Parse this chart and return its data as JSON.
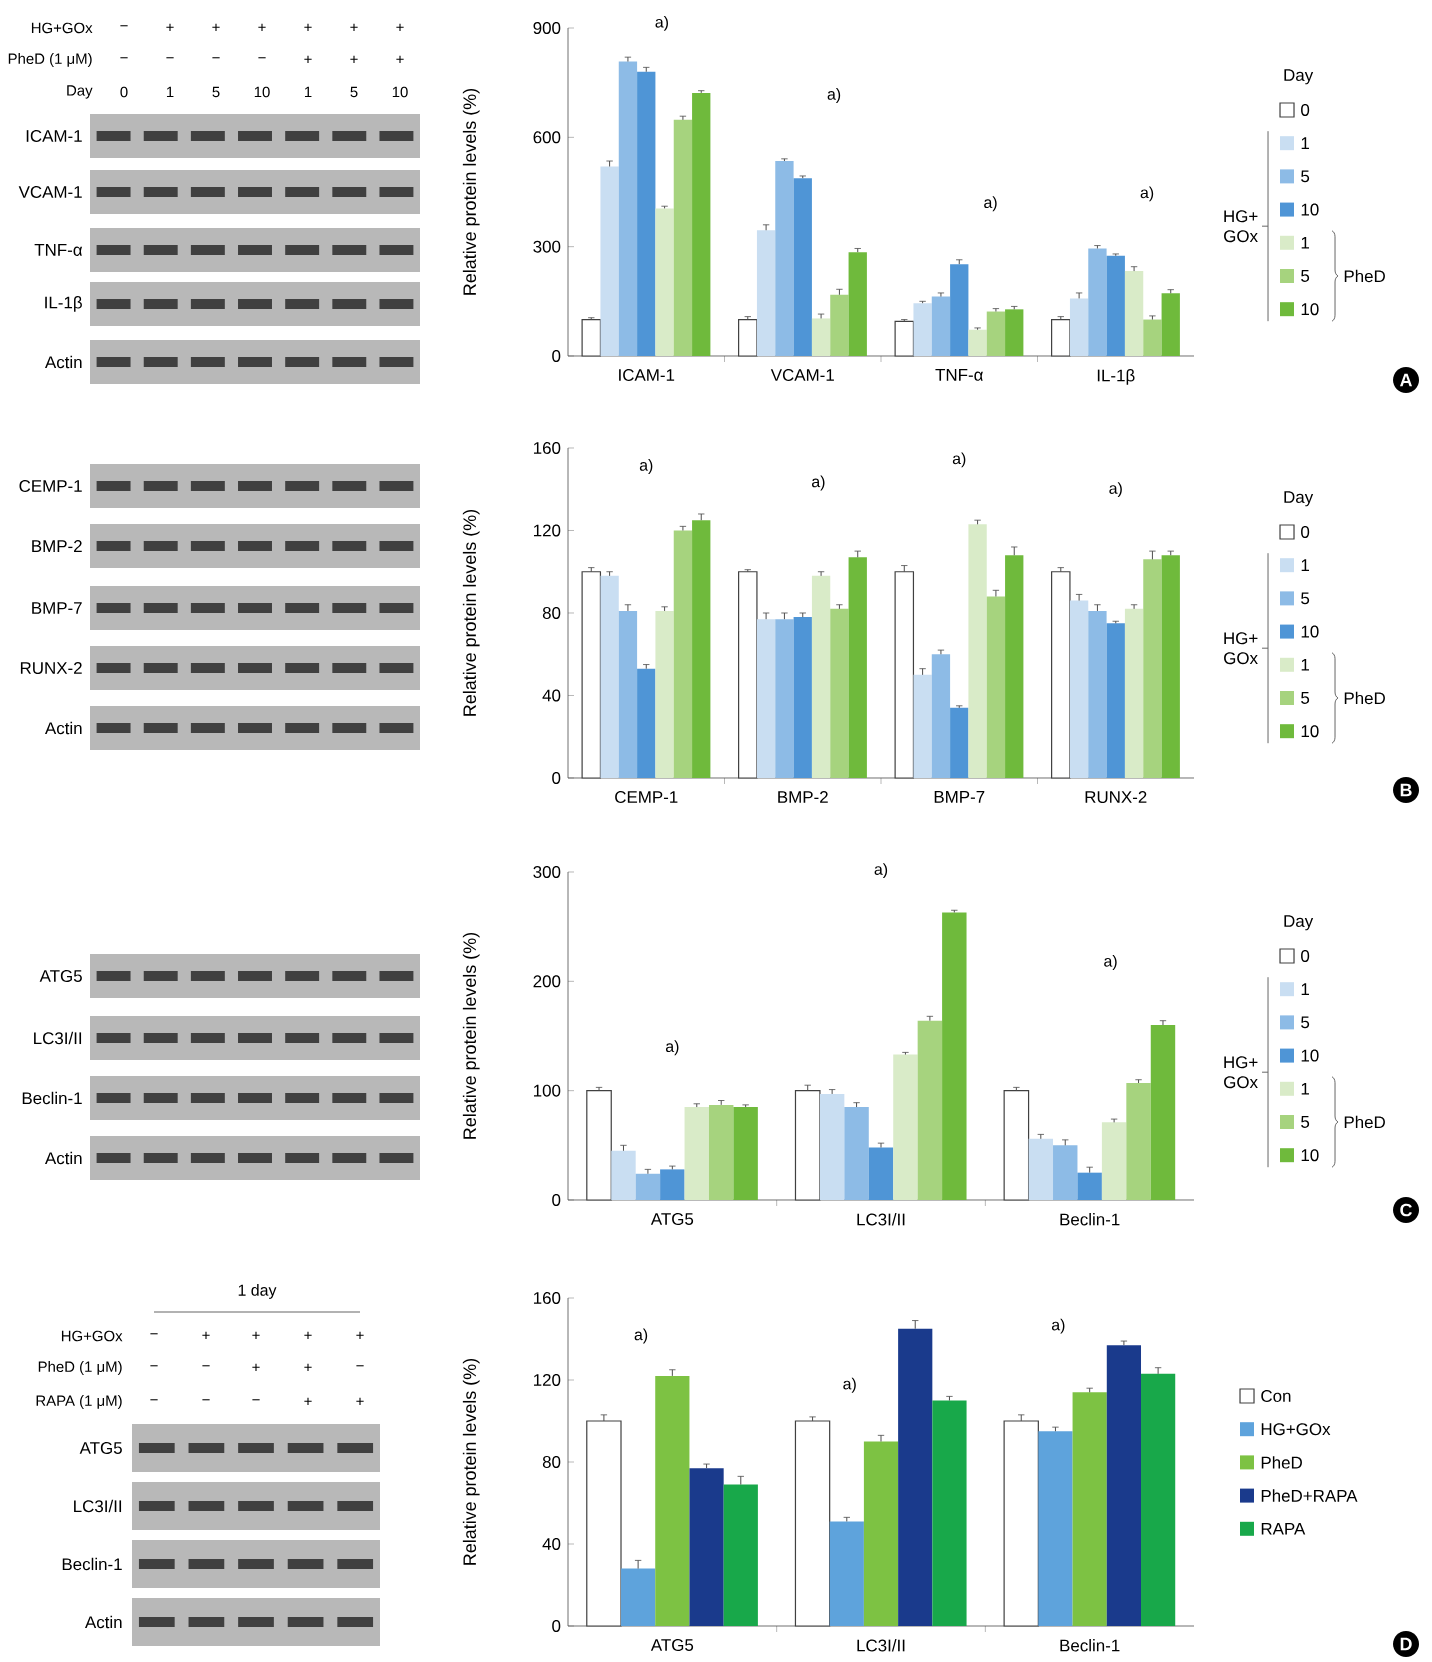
{
  "chart_data": [
    {
      "type": "bar",
      "ylabel": "Relative protein levels (%)",
      "categories": [
        "ICAM-1",
        "VCAM-1",
        "TNF-α",
        "IL-1β"
      ],
      "ylim": [
        0,
        900
      ],
      "yticks": [
        0,
        300,
        600,
        900
      ],
      "legend": "right",
      "legend_title": "Day",
      "series": [
        {
          "name": "0",
          "color": "#ffffff",
          "values": [
            100,
            100,
            95,
            100
          ],
          "errors": [
            5,
            8,
            5,
            8
          ]
        },
        {
          "name": "1",
          "color": "#c9def2",
          "values": [
            520,
            345,
            145,
            158
          ],
          "errors": [
            15,
            15,
            5,
            15
          ]
        },
        {
          "name": "5",
          "color": "#8dbbe6",
          "values": [
            808,
            535,
            163,
            295
          ],
          "errors": [
            12,
            6,
            10,
            8
          ]
        },
        {
          "name": "10",
          "color": "#4f95d6",
          "values": [
            780,
            488,
            252,
            275
          ],
          "errors": [
            12,
            6,
            12,
            5
          ]
        },
        {
          "name": "1",
          "color": "#d9ebc8",
          "values": [
            405,
            103,
            72,
            233
          ],
          "errors": [
            6,
            12,
            5,
            12
          ]
        },
        {
          "name": "5",
          "color": "#a6d37e",
          "values": [
            648,
            168,
            122,
            100
          ],
          "errors": [
            10,
            15,
            8,
            10
          ]
        },
        {
          "name": "10",
          "color": "#6fba3c",
          "values": [
            722,
            285,
            128,
            172
          ],
          "errors": [
            6,
            10,
            8,
            10
          ]
        }
      ],
      "annotations": [
        "a)",
        "a)",
        "a)",
        "a)",
        "HG+GOx",
        "PheD (1 μM)",
        "Day",
        "−",
        "+",
        "+",
        "+",
        "+",
        "+",
        "+",
        "−",
        "−",
        "−",
        "−",
        "+",
        "+",
        "+",
        "0",
        "1",
        "5",
        "10",
        "1",
        "5",
        "10",
        "ICAM-1",
        "VCAM-1",
        "TNF-α",
        "IL-1β",
        "Actin",
        "HG+ GOx",
        "PheD",
        "A"
      ]
    },
    {
      "type": "bar",
      "ylabel": "Relative protein levels (%)",
      "categories": [
        "CEMP-1",
        "BMP-2",
        "BMP-7",
        "RUNX-2"
      ],
      "ylim": [
        0,
        160
      ],
      "yticks": [
        0,
        40,
        80,
        120,
        160
      ],
      "legend": "right",
      "legend_title": "Day",
      "series": [
        {
          "name": "0",
          "color": "#ffffff",
          "values": [
            100,
            100,
            100,
            100
          ],
          "errors": [
            2,
            1,
            3,
            2
          ]
        },
        {
          "name": "1",
          "color": "#c9def2",
          "values": [
            98,
            77,
            50,
            86
          ],
          "errors": [
            2,
            3,
            3,
            3
          ]
        },
        {
          "name": "5",
          "color": "#8dbbe6",
          "values": [
            81,
            77,
            60,
            81
          ],
          "errors": [
            3,
            3,
            2,
            3
          ]
        },
        {
          "name": "10",
          "color": "#4f95d6",
          "values": [
            53,
            78,
            34,
            75
          ],
          "errors": [
            2,
            2,
            1,
            1
          ]
        },
        {
          "name": "1",
          "color": "#d9ebc8",
          "values": [
            81,
            98,
            123,
            82
          ],
          "errors": [
            2,
            2,
            2,
            2
          ]
        },
        {
          "name": "5",
          "color": "#a6d37e",
          "values": [
            120,
            82,
            88,
            106
          ],
          "errors": [
            2,
            2,
            3,
            4
          ]
        },
        {
          "name": "10",
          "color": "#6fba3c",
          "values": [
            125,
            107,
            108,
            108
          ],
          "errors": [
            3,
            3,
            4,
            2
          ]
        }
      ],
      "annotations": [
        "a)",
        "a)",
        "a)",
        "a)",
        "CEMP-1",
        "BMP-2",
        "BMP-7",
        "RUNX-2",
        "Actin",
        "HG+ GOx",
        "PheD",
        "B"
      ]
    },
    {
      "type": "bar",
      "ylabel": "Relative protein levels (%)",
      "categories": [
        "ATG5",
        "LC3I/II",
        "Beclin-1"
      ],
      "ylim": [
        0,
        300
      ],
      "yticks": [
        0,
        100,
        200,
        300
      ],
      "legend": "right",
      "legend_title": "Day",
      "series": [
        {
          "name": "0",
          "color": "#ffffff",
          "values": [
            100,
            100,
            100
          ],
          "errors": [
            3,
            5,
            3
          ]
        },
        {
          "name": "1",
          "color": "#c9def2",
          "values": [
            45,
            97,
            56
          ],
          "errors": [
            5,
            4,
            4
          ]
        },
        {
          "name": "5",
          "color": "#8dbbe6",
          "values": [
            24,
            85,
            50
          ],
          "errors": [
            4,
            4,
            5
          ]
        },
        {
          "name": "10",
          "color": "#4f95d6",
          "values": [
            28,
            48,
            25
          ],
          "errors": [
            3,
            4,
            5
          ]
        },
        {
          "name": "1",
          "color": "#d9ebc8",
          "values": [
            85,
            133,
            71
          ],
          "errors": [
            3,
            2,
            3
          ]
        },
        {
          "name": "5",
          "color": "#a6d37e",
          "values": [
            87,
            164,
            107
          ],
          "errors": [
            4,
            4,
            3
          ]
        },
        {
          "name": "10",
          "color": "#6fba3c",
          "values": [
            85,
            263,
            160
          ],
          "errors": [
            2,
            2,
            4
          ]
        }
      ],
      "annotations": [
        "a)",
        "a)",
        "a)",
        "ATG5",
        "LC3I/II",
        "Beclin-1",
        "Actin",
        "HG+ GOx",
        "PheD",
        "C"
      ]
    },
    {
      "type": "bar",
      "ylabel": "Relative protein levels (%)",
      "categories": [
        "ATG5",
        "LC3I/II",
        "Beclin-1"
      ],
      "ylim": [
        0,
        160
      ],
      "yticks": [
        0,
        40,
        80,
        120,
        160
      ],
      "legend": "right",
      "series": [
        {
          "name": "Con",
          "color": "#ffffff",
          "values": [
            100,
            100,
            100
          ],
          "errors": [
            3,
            2,
            3
          ]
        },
        {
          "name": "HG+GOx",
          "color": "#5ea3dc",
          "values": [
            28,
            51,
            95
          ],
          "errors": [
            4,
            2,
            2
          ]
        },
        {
          "name": "PheD",
          "color": "#7dc243",
          "values": [
            122,
            90,
            114
          ],
          "errors": [
            3,
            3,
            2
          ]
        },
        {
          "name": "PheD+RAPA",
          "color": "#1a3a8c",
          "values": [
            77,
            145,
            137
          ],
          "errors": [
            2,
            4,
            2
          ]
        },
        {
          "name": "RAPA",
          "color": "#18a84a",
          "values": [
            69,
            110,
            123
          ],
          "errors": [
            4,
            2,
            3
          ]
        }
      ],
      "annotations": [
        "a)",
        "a)",
        "a)",
        "1 day",
        "HG+GOx",
        "PheD (1 μM)",
        "RAPA (1 μM)",
        "−",
        "+",
        "+",
        "+",
        "+",
        "−",
        "−",
        "+",
        "+",
        "−",
        "−",
        "−",
        "−",
        "+",
        "+",
        "ATG5",
        "LC3I/II",
        "Beclin-1",
        "Actin",
        "D"
      ]
    }
  ]
}
